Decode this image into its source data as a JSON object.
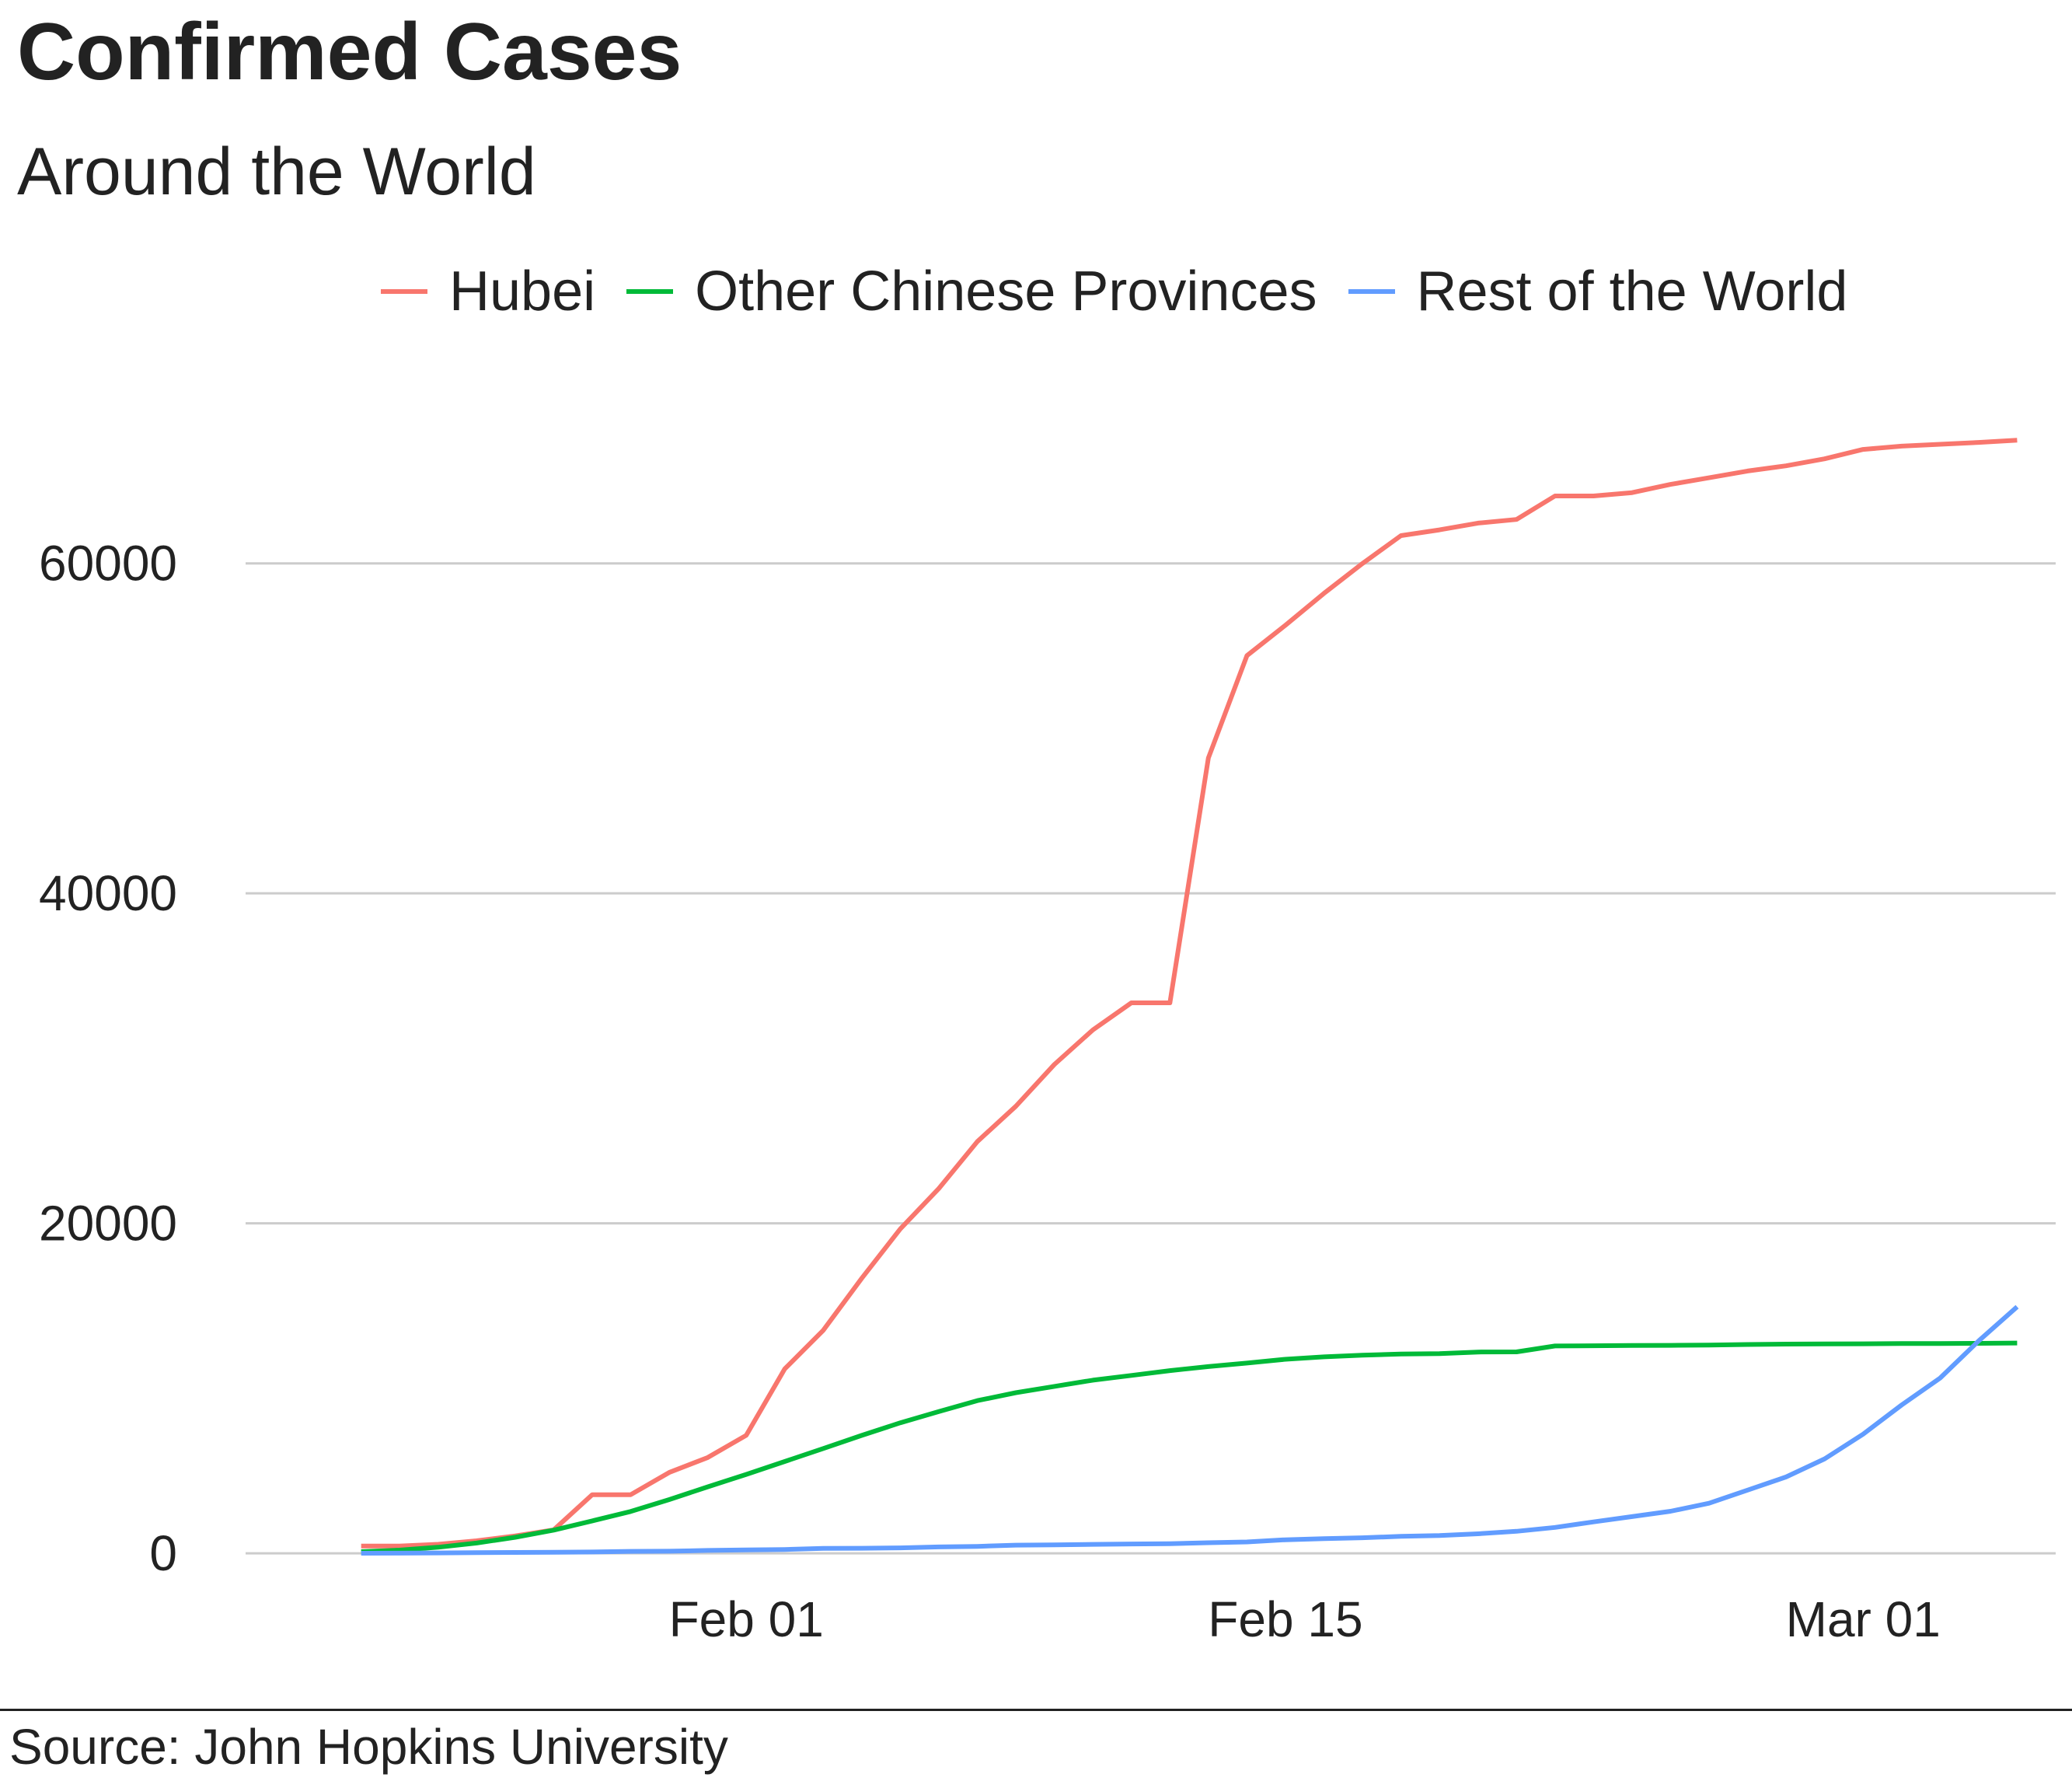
{
  "chart_data": {
    "type": "line",
    "title": "Confirmed Cases",
    "subtitle": "Around the World",
    "caption": "Source: John Hopkins University",
    "xlabel": "",
    "ylabel": "",
    "x_tick_labels": [
      {
        "date": "2020-02-01",
        "label": "Feb 01"
      },
      {
        "date": "2020-02-15",
        "label": "Feb 15"
      },
      {
        "date": "2020-03-01",
        "label": "Mar 01"
      }
    ],
    "y_ticks": [
      0,
      20000,
      40000,
      60000
    ],
    "ylim": [
      -1500,
      72000
    ],
    "xlim": [
      "2020-01-19",
      "2020-03-06"
    ],
    "legend_position": "top",
    "grid": "horizontal major",
    "dates": [
      "2020-01-22",
      "2020-01-23",
      "2020-01-24",
      "2020-01-25",
      "2020-01-26",
      "2020-01-27",
      "2020-01-28",
      "2020-01-29",
      "2020-01-30",
      "2020-01-31",
      "2020-02-01",
      "2020-02-02",
      "2020-02-03",
      "2020-02-04",
      "2020-02-05",
      "2020-02-06",
      "2020-02-07",
      "2020-02-08",
      "2020-02-09",
      "2020-02-10",
      "2020-02-11",
      "2020-02-12",
      "2020-02-13",
      "2020-02-14",
      "2020-02-15",
      "2020-02-16",
      "2020-02-17",
      "2020-02-18",
      "2020-02-19",
      "2020-02-20",
      "2020-02-21",
      "2020-02-22",
      "2020-02-23",
      "2020-02-24",
      "2020-02-25",
      "2020-02-26",
      "2020-02-27",
      "2020-02-28",
      "2020-02-29",
      "2020-03-01",
      "2020-03-02",
      "2020-03-03",
      "2020-03-04",
      "2020-03-05"
    ],
    "series": [
      {
        "name": "Hubei",
        "color": "#F8766D",
        "values": [
          444,
          444,
          549,
          761,
          1058,
          1423,
          3554,
          3554,
          4903,
          5806,
          7153,
          11177,
          13522,
          16678,
          19665,
          22112,
          24953,
          27100,
          29631,
          31728,
          33366,
          33366,
          48206,
          54406,
          56249,
          58182,
          59989,
          61682,
          62031,
          62442,
          62662,
          64084,
          64084,
          64287,
          64786,
          65187,
          65596,
          65914,
          66337,
          66907,
          67103,
          67217,
          67332,
          67466
        ]
      },
      {
        "name": "Other Chinese Provinces",
        "color": "#00BA38",
        "values": [
          103,
          198,
          370,
          626,
          972,
          1405,
          1967,
          2537,
          3260,
          4030,
          4784,
          5568,
          6355,
          7150,
          7912,
          8593,
          9257,
          9735,
          10117,
          10497,
          10781,
          11075,
          11320,
          11530,
          11761,
          11908,
          12008,
          12080,
          12101,
          12201,
          12210,
          12568,
          12583,
          12597,
          12604,
          12627,
          12657,
          12683,
          12692,
          12700,
          12716,
          12721,
          12731,
          12749
        ]
      },
      {
        "name": "Rest of the World",
        "color": "#619CFF",
        "values": [
          10,
          14,
          25,
          40,
          57,
          64,
          82,
          119,
          131,
          177,
          206,
          236,
          298,
          307,
          334,
          387,
          421,
          499,
          518,
          543,
          570,
          584,
          643,
          693,
          822,
          889,
          946,
          1030,
          1079,
          1186,
          1335,
          1573,
          1908,
          2226,
          2551,
          3037,
          3832,
          4632,
          5726,
          7222,
          8993,
          10624,
          12876,
          14943
        ]
      }
    ]
  }
}
